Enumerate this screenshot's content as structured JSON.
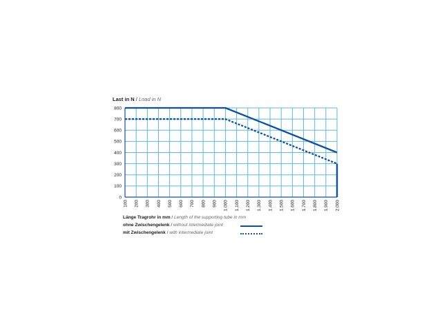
{
  "chart_data": {
    "type": "line",
    "ylabel_de": "Last in N",
    "ylabel_sep": " / ",
    "ylabel_en": "Load in N",
    "xlabel_de": "Länge Tragrohr in mm",
    "xlabel_sep": " / ",
    "xlabel_en": "Length of the supporting tube in mm",
    "x_ticks": [
      "100",
      "200",
      "300",
      "400",
      "500",
      "600",
      "700",
      "800",
      "900",
      "1.000",
      "1.100",
      "1.200",
      "1.300",
      "1.400",
      "1.500",
      "1.600",
      "1.700",
      "1.800",
      "1.900",
      "2.000"
    ],
    "y_ticks": [
      "0",
      "100",
      "200",
      "300",
      "400",
      "500",
      "600",
      "700",
      "800"
    ],
    "xlim": [
      100,
      2000
    ],
    "ylim": [
      0,
      800
    ],
    "grid": true,
    "series": [
      {
        "name_de": "ohne Zwischengelenk",
        "name_sep": " / ",
        "name_en": "without intermediate joint",
        "style": "solid",
        "color": "#0d4fa8",
        "x": [
          100,
          1000,
          2000
        ],
        "y": [
          800,
          800,
          400
        ]
      },
      {
        "name_de": "mit Zwischengelenk",
        "name_sep": " / ",
        "name_en": "with intermediate joint",
        "style": "dotted",
        "color": "#0d4fa8",
        "x": [
          100,
          1000,
          2000
        ],
        "y": [
          700,
          700,
          300
        ]
      }
    ],
    "grid_color": "#5bb8e6",
    "axis_color": "#0d4fa8"
  }
}
